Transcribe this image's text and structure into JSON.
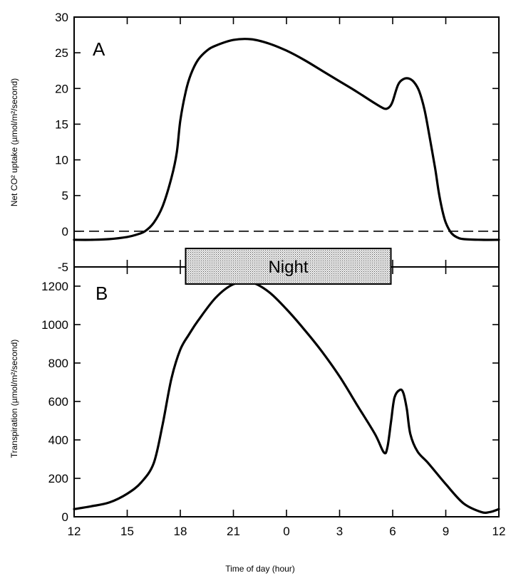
{
  "chart_data": [
    {
      "type": "line",
      "panel_label": "A",
      "ylabel": "Net CO² uptake (µmol/m²/second)",
      "xlabel": "",
      "ylim": [
        -5,
        30
      ],
      "yticks": [
        -5,
        0,
        5,
        10,
        15,
        20,
        25,
        30
      ],
      "xticks": [
        "12",
        "15",
        "18",
        "21",
        "0",
        "3",
        "6",
        "9",
        "12"
      ],
      "reference_line": {
        "y": 0,
        "style": "dashed"
      },
      "series": [
        {
          "x": [
            12,
            13,
            14,
            15,
            15.5,
            16,
            16.5,
            17,
            17.5,
            17.8,
            18,
            18.3,
            18.6,
            19,
            19.5,
            20,
            21,
            22,
            23,
            24,
            25,
            26,
            27,
            28,
            29,
            29.5,
            29.7,
            29.85,
            30,
            30.3,
            30.6,
            30.9,
            31.2,
            31.5,
            31.8,
            32.1,
            32.4,
            32.6,
            32.8,
            33,
            33.3,
            33.6,
            34,
            35,
            36
          ],
          "y": [
            -1.2,
            -1.2,
            -1.1,
            -0.8,
            -0.5,
            0.0,
            1.2,
            3.5,
            7.5,
            11.0,
            15.5,
            19.5,
            22.0,
            24.0,
            25.3,
            26.0,
            26.8,
            26.9,
            26.3,
            25.3,
            24.0,
            22.5,
            21.0,
            19.5,
            17.9,
            17.2,
            17.2,
            17.5,
            18.2,
            20.5,
            21.3,
            21.4,
            20.9,
            19.6,
            17.0,
            13.0,
            8.8,
            5.5,
            3.0,
            1.2,
            -0.2,
            -0.8,
            -1.1,
            -1.2,
            -1.2
          ]
        }
      ]
    },
    {
      "type": "line",
      "panel_label": "B",
      "ylabel": "Transpiration (µmol/m²/second)",
      "xlabel": "Time of day (hour)",
      "ylim": [
        0,
        1300
      ],
      "yticks": [
        0,
        200,
        400,
        600,
        800,
        1000,
        1200
      ],
      "xticks": [
        "12",
        "15",
        "18",
        "21",
        "0",
        "3",
        "6",
        "9",
        "12"
      ],
      "series": [
        {
          "x": [
            12,
            13,
            14,
            15,
            15.8,
            16.5,
            17,
            17.5,
            18,
            18.5,
            19,
            20,
            21,
            22,
            23,
            24,
            25,
            26,
            27,
            28,
            29,
            29.5,
            29.7,
            29.9,
            30.1,
            30.4,
            30.6,
            30.8,
            31,
            31.4,
            32,
            33,
            34,
            35,
            35.5,
            36
          ],
          "y": [
            40,
            55,
            75,
            120,
            180,
            280,
            480,
            720,
            870,
            950,
            1020,
            1140,
            1210,
            1220,
            1170,
            1080,
            975,
            860,
            730,
            580,
            430,
            335,
            360,
            490,
            620,
            660,
            645,
            560,
            430,
            340,
            280,
            170,
            70,
            25,
            25,
            40
          ]
        }
      ]
    }
  ],
  "night_box": {
    "label": "Night",
    "x_start": 18.3,
    "x_end": 29.9
  },
  "colors": {
    "line": "#000000",
    "night_fill": "#d8d8d8",
    "background": "#ffffff"
  }
}
